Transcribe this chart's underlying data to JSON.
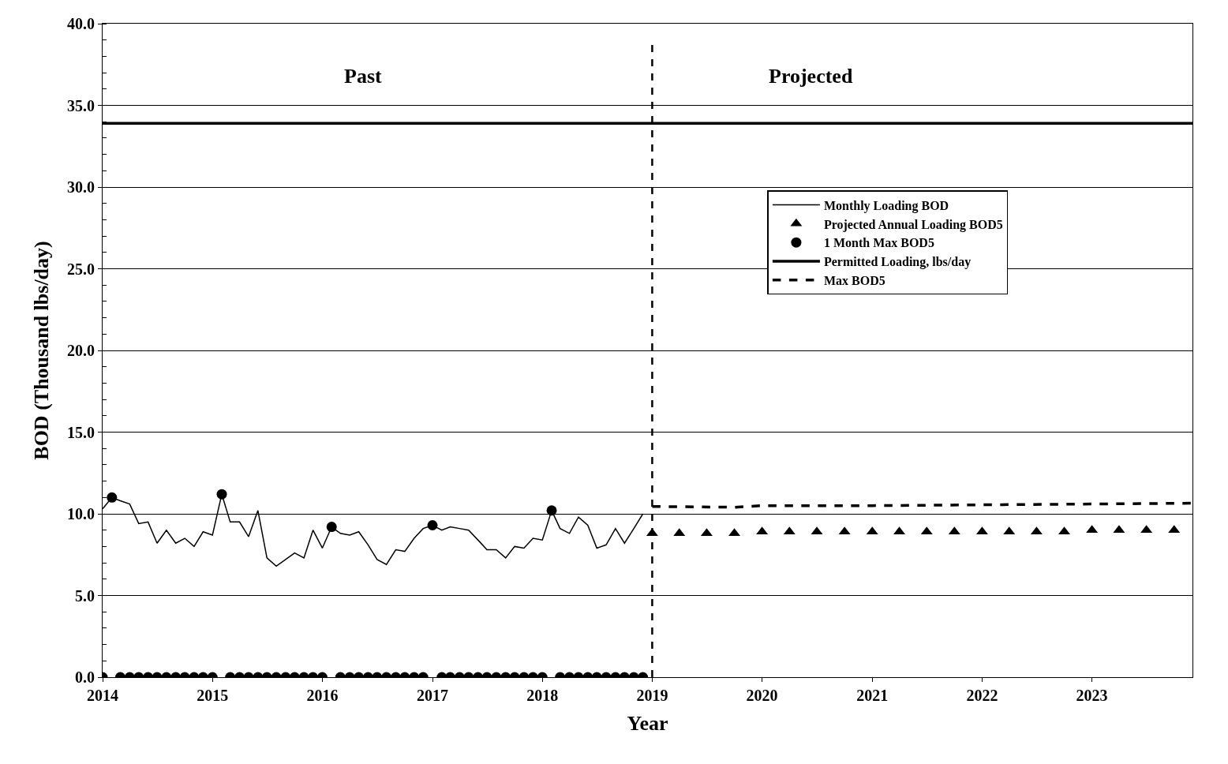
{
  "chart_data": {
    "type": "line",
    "xlabel": "Year",
    "ylabel": "BOD (Thousand lbs/day)",
    "annotations": [
      "Past",
      "Projected"
    ],
    "xlim": [
      "2014-01",
      "2023-12"
    ],
    "xticks": [
      "2014",
      "2015",
      "2016",
      "2017",
      "2018",
      "2019",
      "2020",
      "2021",
      "2022",
      "2023"
    ],
    "ylim": [
      0,
      40
    ],
    "yticks": [
      {
        "value": 0,
        "label": "0.0"
      },
      {
        "value": 5,
        "label": "5.0"
      },
      {
        "value": 10,
        "label": "10.0"
      },
      {
        "value": 15,
        "label": "15.0"
      },
      {
        "value": 20,
        "label": "20.0"
      },
      {
        "value": 25,
        "label": "25.0"
      },
      {
        "value": 30,
        "label": "30.0"
      },
      {
        "value": 35,
        "label": "35.0"
      },
      {
        "value": 40,
        "label": "40.0"
      }
    ],
    "grid": "y",
    "legend": "right",
    "ref_lines": [
      {
        "axis": "x",
        "value": "2019-01",
        "color": "#000000",
        "line_style": "dashed"
      }
    ],
    "x": [
      "2014-01",
      "2014-02",
      "2014-03",
      "2014-04",
      "2014-05",
      "2014-06",
      "2014-07",
      "2014-08",
      "2014-09",
      "2014-10",
      "2014-11",
      "2014-12",
      "2015-01",
      "2015-02",
      "2015-03",
      "2015-04",
      "2015-05",
      "2015-06",
      "2015-07",
      "2015-08",
      "2015-09",
      "2015-10",
      "2015-11",
      "2015-12",
      "2016-01",
      "2016-02",
      "2016-03",
      "2016-04",
      "2016-05",
      "2016-06",
      "2016-07",
      "2016-08",
      "2016-09",
      "2016-10",
      "2016-11",
      "2016-12",
      "2017-01",
      "2017-02",
      "2017-03",
      "2017-04",
      "2017-05",
      "2017-06",
      "2017-07",
      "2017-08",
      "2017-09",
      "2017-10",
      "2017-11",
      "2017-12",
      "2018-01",
      "2018-02",
      "2018-03",
      "2018-04",
      "2018-05",
      "2018-06",
      "2018-07",
      "2018-08",
      "2018-09",
      "2018-10",
      "2018-11",
      "2018-12"
    ],
    "series": [
      {
        "name": "Monthly Loading BOD",
        "color": "#000000",
        "line_style": "solid",
        "marker": "none",
        "values": [
          10.3,
          11.0,
          10.8,
          10.6,
          9.4,
          9.5,
          8.2,
          9.0,
          8.2,
          8.5,
          8.0,
          8.9,
          8.7,
          11.2,
          9.5,
          9.5,
          8.6,
          10.2,
          7.3,
          6.8,
          7.2,
          7.6,
          7.3,
          9.0,
          7.9,
          9.2,
          8.8,
          8.7,
          8.9,
          8.1,
          7.2,
          6.9,
          7.8,
          7.7,
          8.5,
          9.1,
          9.3,
          9.0,
          9.2,
          9.1,
          9.0,
          8.4,
          7.8,
          7.8,
          7.3,
          8.0,
          7.9,
          8.5,
          8.4,
          10.2,
          9.1,
          8.8,
          9.8,
          9.3,
          7.9,
          8.1,
          9.1,
          8.2,
          9.1,
          10.0
        ]
      },
      {
        "name": "Projected Annual Loading BOD5",
        "type": "scatter",
        "color": "#000000",
        "marker": "triangle",
        "x": [
          "2019-01",
          "2019-04",
          "2019-07",
          "2019-10",
          "2020-01",
          "2020-04",
          "2020-07",
          "2020-10",
          "2021-01",
          "2021-04",
          "2021-07",
          "2021-10",
          "2022-01",
          "2022-04",
          "2022-07",
          "2022-10",
          "2023-01",
          "2023-04",
          "2023-07",
          "2023-10"
        ],
        "values": [
          8.8,
          8.8,
          8.8,
          8.8,
          8.9,
          8.9,
          8.9,
          8.9,
          8.9,
          8.9,
          8.9,
          8.9,
          8.9,
          8.9,
          8.9,
          8.9,
          9.0,
          9.0,
          9.0,
          9.0
        ]
      },
      {
        "name": "1 Month Max BOD5",
        "type": "scatter",
        "color": "#000000",
        "marker": "circle",
        "values": [
          0,
          11.0,
          0,
          0,
          0,
          0,
          0,
          0,
          0,
          0,
          0,
          0,
          0,
          11.2,
          0,
          0,
          0,
          0,
          0,
          0,
          0,
          0,
          0,
          0,
          0,
          9.2,
          0,
          0,
          0,
          0,
          0,
          0,
          0,
          0,
          0,
          0,
          9.3,
          0,
          0,
          0,
          0,
          0,
          0,
          0,
          0,
          0,
          0,
          0,
          0,
          10.2,
          0,
          0,
          0,
          0,
          0,
          0,
          0,
          0,
          0,
          0
        ]
      },
      {
        "name": "Permitted Loading, lbs/day",
        "color": "#000000",
        "line_style": "solid",
        "marker": "none",
        "x": [
          "2014-01",
          "2023-12"
        ],
        "values": [
          33.9,
          33.9
        ]
      },
      {
        "name": "Max BOD5",
        "color": "#000000",
        "line_style": "dashed",
        "marker": "none",
        "x": [
          "2019-01",
          "2019-10",
          "2020-01",
          "2021-01",
          "2022-01",
          "2023-01",
          "2023-12"
        ],
        "values": [
          10.45,
          10.4,
          10.5,
          10.5,
          10.55,
          10.6,
          10.65
        ]
      }
    ]
  }
}
